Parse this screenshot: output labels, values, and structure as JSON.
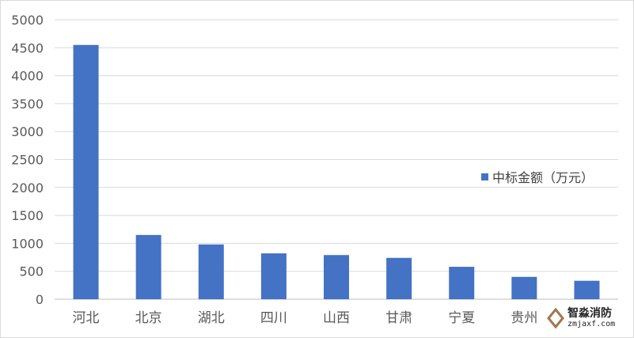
{
  "chart_data": {
    "type": "bar",
    "title": "",
    "xlabel": "",
    "ylabel": "",
    "categories": [
      "河北",
      "北京",
      "湖北",
      "四川",
      "山西",
      "甘肃",
      "宁夏",
      "贵州",
      ""
    ],
    "series": [
      {
        "name": "中标金额（万元）",
        "values": [
          4550,
          1150,
          980,
          820,
          790,
          740,
          580,
          400,
          330
        ],
        "color": "#4472c4"
      }
    ],
    "ylim": [
      0,
      5000
    ],
    "yticks": [
      0,
      500,
      1000,
      1500,
      2000,
      2500,
      3000,
      3500,
      4000,
      4500,
      5000
    ],
    "grid": true,
    "legend_position": "right"
  },
  "watermark": {
    "name": "智淼消防",
    "url": "zmjaxf.com"
  }
}
